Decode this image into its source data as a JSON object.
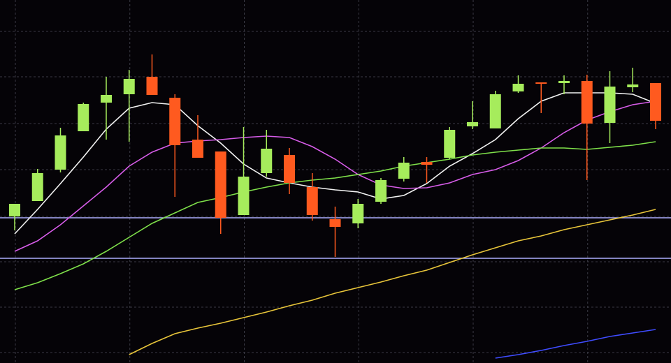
{
  "chart_data": {
    "type": "candlestick",
    "categories": [
      null,
      null,
      null,
      null,
      null,
      null,
      null,
      null,
      null,
      null,
      null,
      null,
      null,
      null,
      null,
      null,
      null,
      null,
      null,
      null,
      null,
      null,
      null,
      null,
      null,
      null,
      null,
      null,
      null
    ],
    "open": [
      210,
      232,
      277,
      332,
      373,
      385,
      410,
      380,
      320,
      303,
      212,
      272,
      298,
      252,
      206,
      200,
      231,
      264,
      288,
      294,
      339,
      336,
      389,
      402,
      401,
      404,
      344,
      395,
      401
    ],
    "high": [
      228,
      278,
      337,
      373,
      410,
      420,
      442,
      385,
      355,
      303,
      338,
      334,
      308,
      272,
      224,
      235,
      265,
      295,
      295,
      338,
      375,
      390,
      412,
      402,
      412,
      413,
      418,
      423,
      401
    ],
    "low": [
      190,
      232,
      273,
      332,
      320,
      317,
      384,
      238,
      294,
      185,
      212,
      267,
      242,
      204,
      152,
      193,
      228,
      260,
      258,
      292,
      335,
      336,
      387,
      358,
      385,
      262,
      315,
      388,
      335
    ],
    "close": [
      228,
      272,
      326,
      371,
      384,
      407,
      384,
      312,
      294,
      208,
      267,
      307,
      258,
      212,
      195,
      228,
      262,
      287,
      284,
      334,
      345,
      385,
      400,
      400,
      404,
      343,
      396,
      399,
      347
    ],
    "up_color": "#a6ec5c",
    "down_color": "#ff5a1f",
    "lines": [
      {
        "color": "#f2f2f2",
        "values": [
          185,
          220,
          257,
          295,
          335,
          365,
          373,
          370,
          340,
          315,
          285,
          265,
          258,
          252,
          248,
          245,
          235,
          240,
          257,
          282,
          300,
          320,
          350,
          375,
          387,
          387,
          387,
          385,
          372
        ]
      },
      {
        "color": "#d65ce8",
        "values": [
          160,
          175,
          198,
          225,
          252,
          282,
          302,
          315,
          318,
          320,
          323,
          325,
          323,
          310,
          292,
          270,
          255,
          250,
          251,
          258,
          270,
          277,
          290,
          308,
          330,
          348,
          360,
          370,
          375
        ]
      },
      {
        "color": "#7fe04a",
        "values": [
          105,
          115,
          128,
          142,
          160,
          180,
          200,
          215,
          230,
          237,
          245,
          252,
          258,
          262,
          265,
          270,
          275,
          282,
          287,
          292,
          298,
          302,
          305,
          308,
          308,
          306,
          309,
          312,
          317
        ]
      },
      {
        "color": "#e8c53a",
        "values": [
          null,
          null,
          null,
          null,
          null,
          12,
          28,
          42,
          50,
          57,
          65,
          73,
          82,
          90,
          100,
          108,
          116,
          125,
          133,
          144,
          155,
          165,
          175,
          182,
          191,
          198,
          205,
          212,
          220
        ]
      },
      {
        "color": "#3f4cff",
        "values": [
          null,
          null,
          null,
          null,
          null,
          null,
          null,
          null,
          null,
          null,
          null,
          null,
          null,
          null,
          null,
          null,
          null,
          null,
          null,
          null,
          null,
          7,
          12,
          18,
          25,
          31,
          38,
          43,
          48
        ]
      }
    ],
    "hlines": [
      {
        "value": 208,
        "color": "#aeb0ff"
      },
      {
        "value": 150,
        "color": "#aeb0ff"
      }
    ],
    "ylim": [
      0,
      520
    ],
    "yticks": [
      475,
      410,
      343,
      277,
      210,
      145,
      80,
      15
    ],
    "grid": true,
    "xgrid": true
  }
}
